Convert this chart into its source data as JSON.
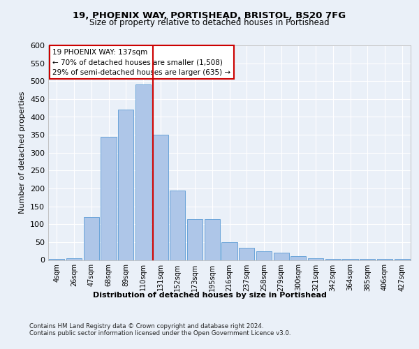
{
  "title1": "19, PHOENIX WAY, PORTISHEAD, BRISTOL, BS20 7FG",
  "title2": "Size of property relative to detached houses in Portishead",
  "xlabel": "Distribution of detached houses by size in Portishead",
  "ylabel": "Number of detached properties",
  "categories": [
    "4sqm",
    "26sqm",
    "47sqm",
    "68sqm",
    "89sqm",
    "110sqm",
    "131sqm",
    "152sqm",
    "173sqm",
    "195sqm",
    "216sqm",
    "237sqm",
    "258sqm",
    "279sqm",
    "300sqm",
    "321sqm",
    "342sqm",
    "364sqm",
    "385sqm",
    "406sqm",
    "427sqm"
  ],
  "values": [
    2,
    5,
    120,
    345,
    420,
    490,
    350,
    195,
    115,
    115,
    50,
    35,
    25,
    20,
    10,
    5,
    2,
    2,
    2,
    2,
    2
  ],
  "bar_color": "#aec6e8",
  "bar_edge_color": "#5b9bd5",
  "vline_color": "#cc0000",
  "vline_pos": 5.575,
  "annotation_title": "19 PHOENIX WAY: 137sqm",
  "annotation_line1": "← 70% of detached houses are smaller (1,508)",
  "annotation_line2": "29% of semi-detached houses are larger (635) →",
  "annotation_box_color": "#ffffff",
  "annotation_box_edge": "#cc0000",
  "ylim": [
    0,
    600
  ],
  "yticks": [
    0,
    50,
    100,
    150,
    200,
    250,
    300,
    350,
    400,
    450,
    500,
    550,
    600
  ],
  "footer1": "Contains HM Land Registry data © Crown copyright and database right 2024.",
  "footer2": "Contains public sector information licensed under the Open Government Licence v3.0.",
  "bg_color": "#eaf0f8",
  "plot_bg_color": "#eaf0f8"
}
